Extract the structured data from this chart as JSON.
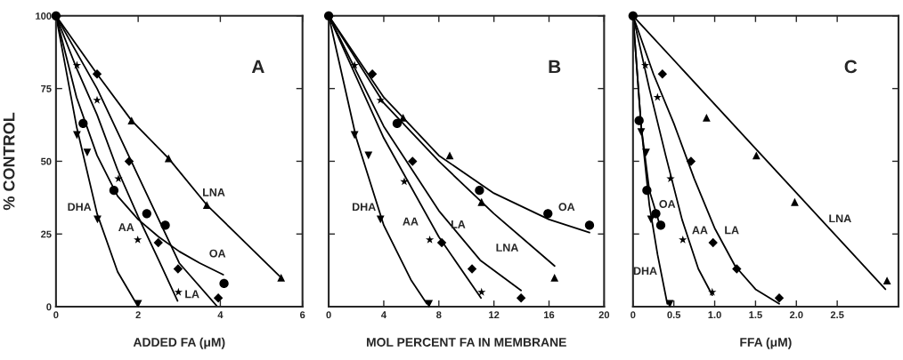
{
  "chart_data": [
    {
      "type": "line",
      "xlabel": "ADDED FA (μM)",
      "ylabel": "% CONTROL",
      "xlim": [
        0,
        6
      ],
      "xticks": [
        0,
        2,
        4,
        6
      ],
      "ylim": [
        0,
        100
      ],
      "yticks": [
        0,
        25,
        50,
        75,
        100
      ],
      "series": [
        {
          "type": "scatter",
          "marker": "circle",
          "color": "#000000",
          "x": [
            0,
            0.66,
            1.41,
            2.21,
            2.66,
            4.09
          ],
          "values": [
            100,
            63,
            40,
            32,
            28,
            8
          ]
        },
        {
          "type": "scatter",
          "marker": "triangle",
          "color": "#000000",
          "x": [
            1.84,
            2.74,
            3.67,
            5.48
          ],
          "values": [
            64,
            51,
            35,
            10
          ]
        },
        {
          "type": "scatter",
          "marker": "diamond",
          "color": "#000000",
          "x": [
            1.0,
            1.78,
            2.49,
            2.97,
            3.95
          ],
          "values": [
            80,
            50,
            22,
            13,
            3
          ]
        },
        {
          "type": "scatter",
          "marker": "star",
          "color": "#000000",
          "x": [
            0.51,
            1.0,
            1.52,
            1.99,
            2.98
          ],
          "values": [
            83,
            71,
            44,
            23,
            5
          ]
        },
        {
          "type": "scatter",
          "marker": "triangle_down",
          "color": "#000000",
          "x": [
            0.51,
            0.76,
            1.01,
            2.0
          ],
          "values": [
            59,
            53,
            30,
            1
          ]
        },
        {
          "type": "line",
          "color": "#000000",
          "x": [
            0,
            0.5,
            1,
            1.5,
            2,
            2.5,
            3,
            3.5,
            4.07
          ],
          "values": [
            100,
            72,
            52,
            38,
            30,
            24,
            19,
            15,
            11
          ]
        },
        {
          "color": "#000000",
          "x": [
            0,
            1,
            1.84,
            2.74,
            3.67,
            5.48
          ],
          "values": [
            100,
            80,
            64,
            51,
            35,
            10
          ]
        },
        {
          "type": "line",
          "color": "#000000",
          "x": [
            0,
            1,
            1.5,
            2,
            2.5,
            3,
            3.93
          ],
          "values": [
            100,
            75,
            60,
            45,
            30,
            15,
            0
          ]
        },
        {
          "type": "line",
          "color": "#000000",
          "x": [
            0,
            0.5,
            1,
            1.5,
            2,
            2.5,
            2.96
          ],
          "values": [
            100,
            82,
            66,
            47,
            31,
            16,
            2
          ]
        },
        {
          "type": "line",
          "color": "#000000",
          "x": [
            0,
            0.5,
            1,
            1.5,
            2
          ],
          "values": [
            100,
            62,
            32,
            12,
            0
          ]
        }
      ],
      "annotations": [
        "A",
        "DHA",
        "AA",
        "LA",
        "OA",
        "LNA"
      ]
    },
    {
      "type": "line",
      "xlabel": "MOL PERCENT FA IN MEMBRANE",
      "xlim": [
        0,
        20
      ],
      "xticks": [
        0,
        4,
        8,
        12,
        16,
        20
      ],
      "ylim": [
        0,
        100
      ],
      "yticks": [
        0,
        25,
        50,
        75,
        100
      ],
      "tick_labels": "x",
      "series": [
        {
          "type": "scatter",
          "marker": "circle",
          "color": "#000000",
          "x": [
            0,
            4.97,
            10.95,
            15.92,
            18.94
          ],
          "values": [
            100,
            63,
            40,
            32,
            28
          ]
        },
        {
          "type": "scatter",
          "marker": "triangle",
          "color": "#000000",
          "x": [
            5.4,
            8.79,
            11.1,
            16.4
          ],
          "values": [
            65,
            52,
            36,
            10
          ]
        },
        {
          "type": "scatter",
          "marker": "diamond",
          "color": "#000000",
          "x": [
            3.17,
            6.09,
            8.21,
            10.41,
            13.97
          ],
          "values": [
            80,
            50,
            22,
            13,
            3
          ]
        },
        {
          "type": "scatter",
          "marker": "star",
          "color": "#000000",
          "x": [
            1.88,
            3.76,
            5.49,
            7.34,
            11.1
          ],
          "values": [
            83,
            71,
            43,
            23,
            5
          ]
        },
        {
          "type": "scatter",
          "marker": "triangle_down",
          "color": "#000000",
          "x": [
            1.88,
            2.89,
            3.76,
            7.28
          ],
          "values": [
            59,
            52,
            30,
            1
          ]
        },
        {
          "type": "line",
          "color": "#000000",
          "x": [
            0,
            4,
            8,
            12,
            16,
            18.94
          ],
          "values": [
            100,
            72,
            52,
            39,
            30,
            25.5
          ]
        },
        {
          "type": "line",
          "color": "#000000",
          "x": [
            0,
            4,
            8,
            12,
            16.41
          ],
          "values": [
            100,
            70,
            50,
            32,
            14
          ]
        },
        {
          "type": "line",
          "color": "#000000",
          "x": [
            0,
            4,
            8,
            11,
            13.97
          ],
          "values": [
            100,
            62,
            33,
            16,
            5.6
          ]
        },
        {
          "type": "line",
          "color": "#000000",
          "x": [
            0,
            4,
            8,
            11.06
          ],
          "values": [
            100,
            58,
            24,
            3
          ]
        },
        {
          "type": "line",
          "color": "#000000",
          "x": [
            0,
            2,
            4,
            6,
            7.13
          ],
          "values": [
            100,
            58,
            28,
            9,
            1
          ]
        }
      ],
      "annotations": [
        "B",
        "DHA",
        "AA",
        "LA",
        "LNA",
        "OA"
      ]
    },
    {
      "type": "line",
      "xlabel": "FFA (μM)",
      "xlim": [
        0,
        3.25
      ],
      "xticks": [
        0,
        0.5,
        {
          "value": 1,
          "label": "1.0"
        },
        1.5,
        {
          "value": 2,
          "label": "2.0"
        },
        2.5
      ],
      "ylim": [
        0,
        100
      ],
      "yticks": [
        0,
        25,
        50,
        75,
        100
      ],
      "tick_labels": "x",
      "series": [
        {
          "type": "scatter",
          "marker": "circle",
          "color": "#000000",
          "x": [
            0,
            0.075,
            0.17,
            0.28,
            0.34
          ],
          "values": [
            100,
            64,
            40,
            32,
            28
          ]
        },
        {
          "type": "scatter",
          "marker": "triangle",
          "color": "#000000",
          "x": [
            0.9,
            1.51,
            1.98,
            3.11
          ],
          "values": [
            65,
            52,
            36,
            9
          ]
        },
        {
          "type": "scatter",
          "marker": "diamond",
          "color": "#000000",
          "x": [
            0.36,
            0.71,
            0.98,
            1.27,
            1.79
          ],
          "values": [
            80,
            50,
            22,
            13,
            3
          ]
        },
        {
          "type": "scatter",
          "marker": "star",
          "color": "#000000",
          "x": [
            0.15,
            0.3,
            0.46,
            0.61,
            0.97
          ],
          "values": [
            83,
            72,
            44,
            23,
            5
          ]
        },
        {
          "type": "scatter",
          "marker": "triangle_down",
          "color": "#000000",
          "x": [
            0.1,
            0.16,
            0.22,
            0.45
          ],
          "values": [
            60,
            53,
            30,
            1
          ]
        },
        {
          "type": "line",
          "color": "#000000",
          "x": [
            0,
            0.1,
            0.2,
            0.33
          ],
          "values": [
            100,
            62,
            40,
            28
          ]
        },
        {
          "type": "line",
          "color": "#000000",
          "x": [
            0,
            3.09
          ],
          "values": [
            100,
            6
          ]
        },
        {
          "type": "line",
          "color": "#000000",
          "x": [
            0,
            0.25,
            0.5,
            0.75,
            1.0,
            1.25,
            1.5,
            1.79
          ],
          "values": [
            100,
            80,
            63,
            44,
            27,
            14,
            6,
            1
          ]
        },
        {
          "type": "line",
          "color": "#000000",
          "x": [
            0,
            0.2,
            0.4,
            0.6,
            0.8,
            0.97
          ],
          "values": [
            100,
            75,
            52,
            30,
            13,
            4
          ]
        },
        {
          "type": "line",
          "color": "#000000",
          "x": [
            0,
            0.1,
            0.2,
            0.3,
            0.42
          ],
          "values": [
            100,
            62,
            35,
            18,
            1
          ]
        }
      ],
      "annotations": [
        "C",
        "DHA",
        "OA",
        "AA",
        "LA",
        "LNA"
      ]
    }
  ]
}
